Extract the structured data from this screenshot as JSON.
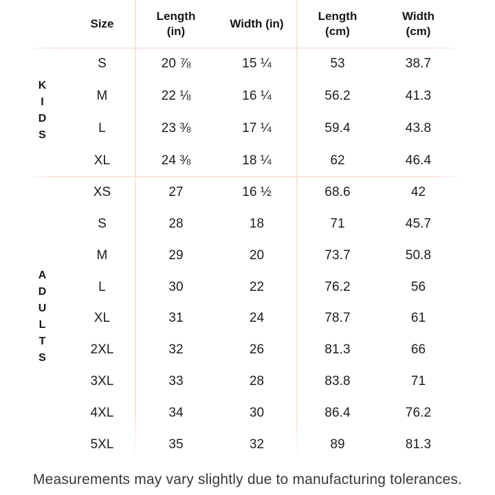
{
  "chart_data": {
    "type": "table",
    "columns": [
      "Size",
      "Length (in)",
      "Width (in)",
      "Length (cm)",
      "Width (cm)"
    ],
    "header_lines": {
      "size": [
        "Size"
      ],
      "length_in": [
        "Length",
        "(in)"
      ],
      "width_in": [
        "Width (in)"
      ],
      "length_cm": [
        "Length",
        "(cm)"
      ],
      "width_cm": [
        "Width",
        "(cm)"
      ]
    },
    "groups": [
      {
        "name": "KIDS",
        "rows": [
          {
            "size": "S",
            "length_in": "20 ⅞",
            "width_in": "15 ¼",
            "length_cm": "53",
            "width_cm": "38.7"
          },
          {
            "size": "M",
            "length_in": "22 ⅛",
            "width_in": "16 ¼",
            "length_cm": "56.2",
            "width_cm": "41.3"
          },
          {
            "size": "L",
            "length_in": "23 ⅜",
            "width_in": "17 ¼",
            "length_cm": "59.4",
            "width_cm": "43.8"
          },
          {
            "size": "XL",
            "length_in": "24 ⅜",
            "width_in": "18 ¼",
            "length_cm": "62",
            "width_cm": "46.4"
          }
        ]
      },
      {
        "name": "ADULTS",
        "rows": [
          {
            "size": "XS",
            "length_in": "27",
            "width_in": "16 ½",
            "length_cm": "68.6",
            "width_cm": "42"
          },
          {
            "size": "S",
            "length_in": "28",
            "width_in": "18",
            "length_cm": "71",
            "width_cm": "45.7"
          },
          {
            "size": "M",
            "length_in": "29",
            "width_in": "20",
            "length_cm": "73.7",
            "width_cm": "50.8"
          },
          {
            "size": "L",
            "length_in": "30",
            "width_in": "22",
            "length_cm": "76.2",
            "width_cm": "56"
          },
          {
            "size": "XL",
            "length_in": "31",
            "width_in": "24",
            "length_cm": "78.7",
            "width_cm": "61"
          },
          {
            "size": "2XL",
            "length_in": "32",
            "width_in": "26",
            "length_cm": "81.3",
            "width_cm": "66"
          },
          {
            "size": "3XL",
            "length_in": "33",
            "width_in": "28",
            "length_cm": "83.8",
            "width_cm": "71"
          },
          {
            "size": "4XL",
            "length_in": "34",
            "width_in": "30",
            "length_cm": "86.4",
            "width_cm": "76.2"
          },
          {
            "size": "5XL",
            "length_in": "35",
            "width_in": "32",
            "length_cm": "89",
            "width_cm": "81.3"
          }
        ]
      }
    ],
    "note": "Measurements may vary slightly due to manufacturing tolerances.",
    "layout": {
      "grid": "partial-lines",
      "legend": "none"
    }
  },
  "colors": {
    "background": "#ffffff",
    "divider": "#fbe4dc",
    "text": "#1c1c1e",
    "note_text": "#383838"
  }
}
